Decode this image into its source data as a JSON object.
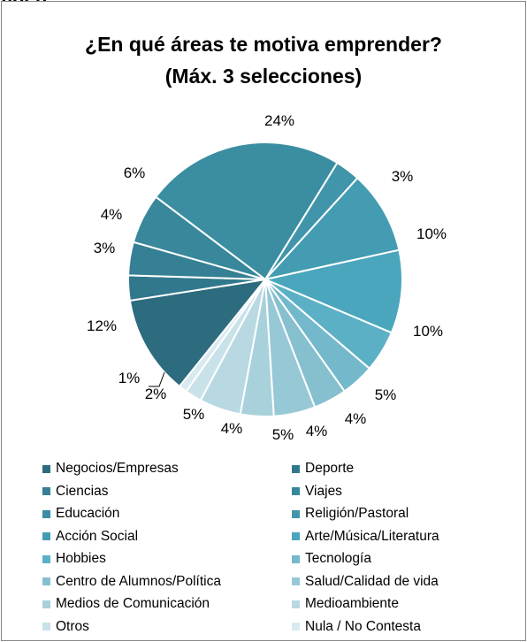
{
  "chart_data": {
    "type": "pie",
    "title_line1": "¿En qué áreas te motiva emprender?",
    "title_line2": "(Máx. 3 selecciones)",
    "top_fragment": "agen",
    "slices": [
      {
        "name": "Educación",
        "value": 24,
        "label": "24%",
        "color": "#3b8ea2"
      },
      {
        "name": "Religión/Pastoral",
        "value": 3,
        "label": "3%",
        "color": "#4195aa"
      },
      {
        "name": "Acción Social",
        "value": 10,
        "label": "10%",
        "color": "#449cb2"
      },
      {
        "name": "Arte/Música/Literatura",
        "value": 10,
        "label": "10%",
        "color": "#4aa6bd"
      },
      {
        "name": "Hobbies",
        "value": 5,
        "label": "5%",
        "color": "#5cb0c5"
      },
      {
        "name": "Tecnología",
        "value": 4,
        "label": "4%",
        "color": "#73b9cb"
      },
      {
        "name": "Centro de Alumnos/Política",
        "value": 4,
        "label": "4%",
        "color": "#86c0cf"
      },
      {
        "name": "Salud/Calidad de vida",
        "value": 5,
        "label": "5%",
        "color": "#97c8d5"
      },
      {
        "name": "Medios de Comunicación",
        "value": 4,
        "label": "4%",
        "color": "#a8d1dc"
      },
      {
        "name": "Medioambiente",
        "value": 5,
        "label": "5%",
        "color": "#b8d9e2"
      },
      {
        "name": "Otros",
        "value": 2,
        "label": "2%",
        "color": "#c9e2e9"
      },
      {
        "name": "Nula / No Contesta",
        "value": 1,
        "label": "1%",
        "color": "#d8eaef"
      },
      {
        "name": "Negocios/Empresas",
        "value": 12,
        "label": "12%",
        "color": "#2d6b7e"
      },
      {
        "name": "Deporte",
        "value": 3,
        "label": "3%",
        "color": "#31788c"
      },
      {
        "name": "Ciencias",
        "value": 4,
        "label": "4%",
        "color": "#358094"
      },
      {
        "name": "Viajes",
        "value": 6,
        "label": "6%",
        "color": "#38879b"
      }
    ],
    "legend": [
      {
        "name": "Negocios/Empresas",
        "color": "#2d6b7e"
      },
      {
        "name": "Deporte",
        "color": "#31788c"
      },
      {
        "name": "Ciencias",
        "color": "#358094"
      },
      {
        "name": "Viajes",
        "color": "#38879b"
      },
      {
        "name": "Educación",
        "color": "#3b8ea2"
      },
      {
        "name": "Religión/Pastoral",
        "color": "#4195aa"
      },
      {
        "name": "Acción Social",
        "color": "#449cb2"
      },
      {
        "name": "Arte/Música/Literatura",
        "color": "#4aa6bd"
      },
      {
        "name": "Hobbies",
        "color": "#5cb0c5"
      },
      {
        "name": "Tecnología",
        "color": "#73b9cb"
      },
      {
        "name": "Centro de Alumnos/Política",
        "color": "#86c0cf"
      },
      {
        "name": "Salud/Calidad de vida",
        "color": "#97c8d5"
      },
      {
        "name": "Medios de Comunicación",
        "color": "#a8d1dc"
      },
      {
        "name": "Medioambiente",
        "color": "#b8d9e2"
      },
      {
        "name": "Otros",
        "color": "#c9e2e9"
      },
      {
        "name": "Nula / No Contesta",
        "color": "#d8eaef"
      }
    ],
    "legend_placement": "bottom"
  }
}
